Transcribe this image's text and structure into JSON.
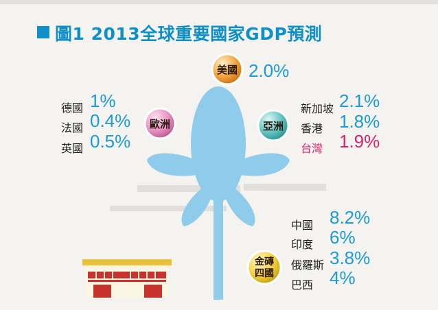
{
  "title": "圖1 2013全球重要國家GDP預測",
  "colors": {
    "title": "#0e8fc8",
    "value": "#1b9bd6",
    "highlight": "#d6236e",
    "plant": "#8fcbea",
    "usa_badge": "#f4a23a",
    "europe_badge": "#e98fc0",
    "asia_badge": "#5fc3c0",
    "brics_badge": "#f3d03a"
  },
  "chart_data": {
    "type": "table",
    "groups": [
      {
        "name": "美國",
        "badge": "usa",
        "entries": [
          {
            "value": "2.0%",
            "pct": 2.0
          }
        ]
      },
      {
        "name": "歐洲",
        "badge": "europe",
        "entries": [
          {
            "country": "德國",
            "value": "1%",
            "pct": 1.0
          },
          {
            "country": "法國",
            "value": "0.4%",
            "pct": 0.4
          },
          {
            "country": "英國",
            "value": "0.5%",
            "pct": 0.5
          }
        ]
      },
      {
        "name": "亞洲",
        "badge": "asia",
        "entries": [
          {
            "country": "新加坡",
            "value": "2.1%",
            "pct": 2.1
          },
          {
            "country": "香港",
            "value": "1.8%",
            "pct": 1.8
          },
          {
            "country": "台灣",
            "value": "1.9%",
            "pct": 1.9,
            "highlight": true
          }
        ]
      },
      {
        "name": "金磚四國",
        "badge": "brics",
        "entries": [
          {
            "country": "中國",
            "value": "8.2%",
            "pct": 8.2
          },
          {
            "country": "印度",
            "value": "6%",
            "pct": 6.0
          },
          {
            "country": "俄羅斯",
            "value": "3.8%",
            "pct": 3.8
          },
          {
            "country": "巴西",
            "value": "4%",
            "pct": 4.0
          }
        ]
      }
    ]
  }
}
